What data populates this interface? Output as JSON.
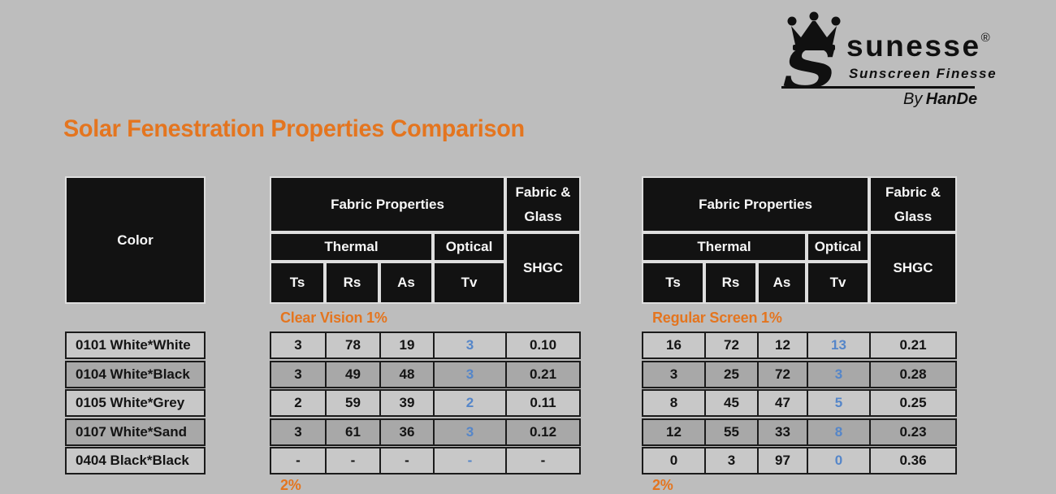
{
  "page": {
    "title": "Solar Fenestration Properties Comparison"
  },
  "logo": {
    "brand": "sunesse",
    "registered": "®",
    "tagline": "Sunscreen Finesse",
    "byline_prefix": "By",
    "byline_name": "HanDe",
    "crown_icon": "crown-icon"
  },
  "colors": {
    "accent_orange": "#e4751f",
    "tv_blue": "#5586c9",
    "header_bg": "#121212",
    "header_border": "#dedede",
    "row_light": "#c8c8c8",
    "row_dark": "#a8a8a8",
    "grid_border": "#1b1b1b",
    "page_background": "#bdbdbd"
  },
  "header": {
    "color_label": "Color",
    "fabric_properties": "Fabric Properties",
    "fabric_glass_line1": "Fabric &",
    "fabric_glass_line2": "Glass",
    "thermal": "Thermal",
    "optical": "Optical",
    "shgc": "SHGC",
    "col_ts": "Ts",
    "col_rs": "Rs",
    "col_as": "As",
    "col_tv": "Tv"
  },
  "sections": {
    "left_label": "Clear Vision 1%",
    "right_label": "Regular Screen 1%",
    "left_next_label": "2%",
    "right_next_label": "2%"
  },
  "color_rows": [
    "0101 White*White",
    "0104 White*Black",
    "0105 White*Grey",
    "0107 White*Sand",
    "0404 Black*Black"
  ],
  "left_table": {
    "rows": [
      [
        "3",
        "78",
        "19",
        "3",
        "0.10"
      ],
      [
        "3",
        "49",
        "48",
        "3",
        "0.21"
      ],
      [
        "2",
        "59",
        "39",
        "2",
        "0.11"
      ],
      [
        "3",
        "61",
        "36",
        "3",
        "0.12"
      ],
      [
        "-",
        "-",
        "-",
        "-",
        "-"
      ]
    ]
  },
  "right_table": {
    "rows": [
      [
        "16",
        "72",
        "12",
        "13",
        "0.21"
      ],
      [
        "3",
        "25",
        "72",
        "3",
        "0.28"
      ],
      [
        "8",
        "45",
        "47",
        "5",
        "0.25"
      ],
      [
        "12",
        "55",
        "33",
        "8",
        "0.23"
      ],
      [
        "0",
        "3",
        "97",
        "0",
        "0.36"
      ]
    ]
  }
}
